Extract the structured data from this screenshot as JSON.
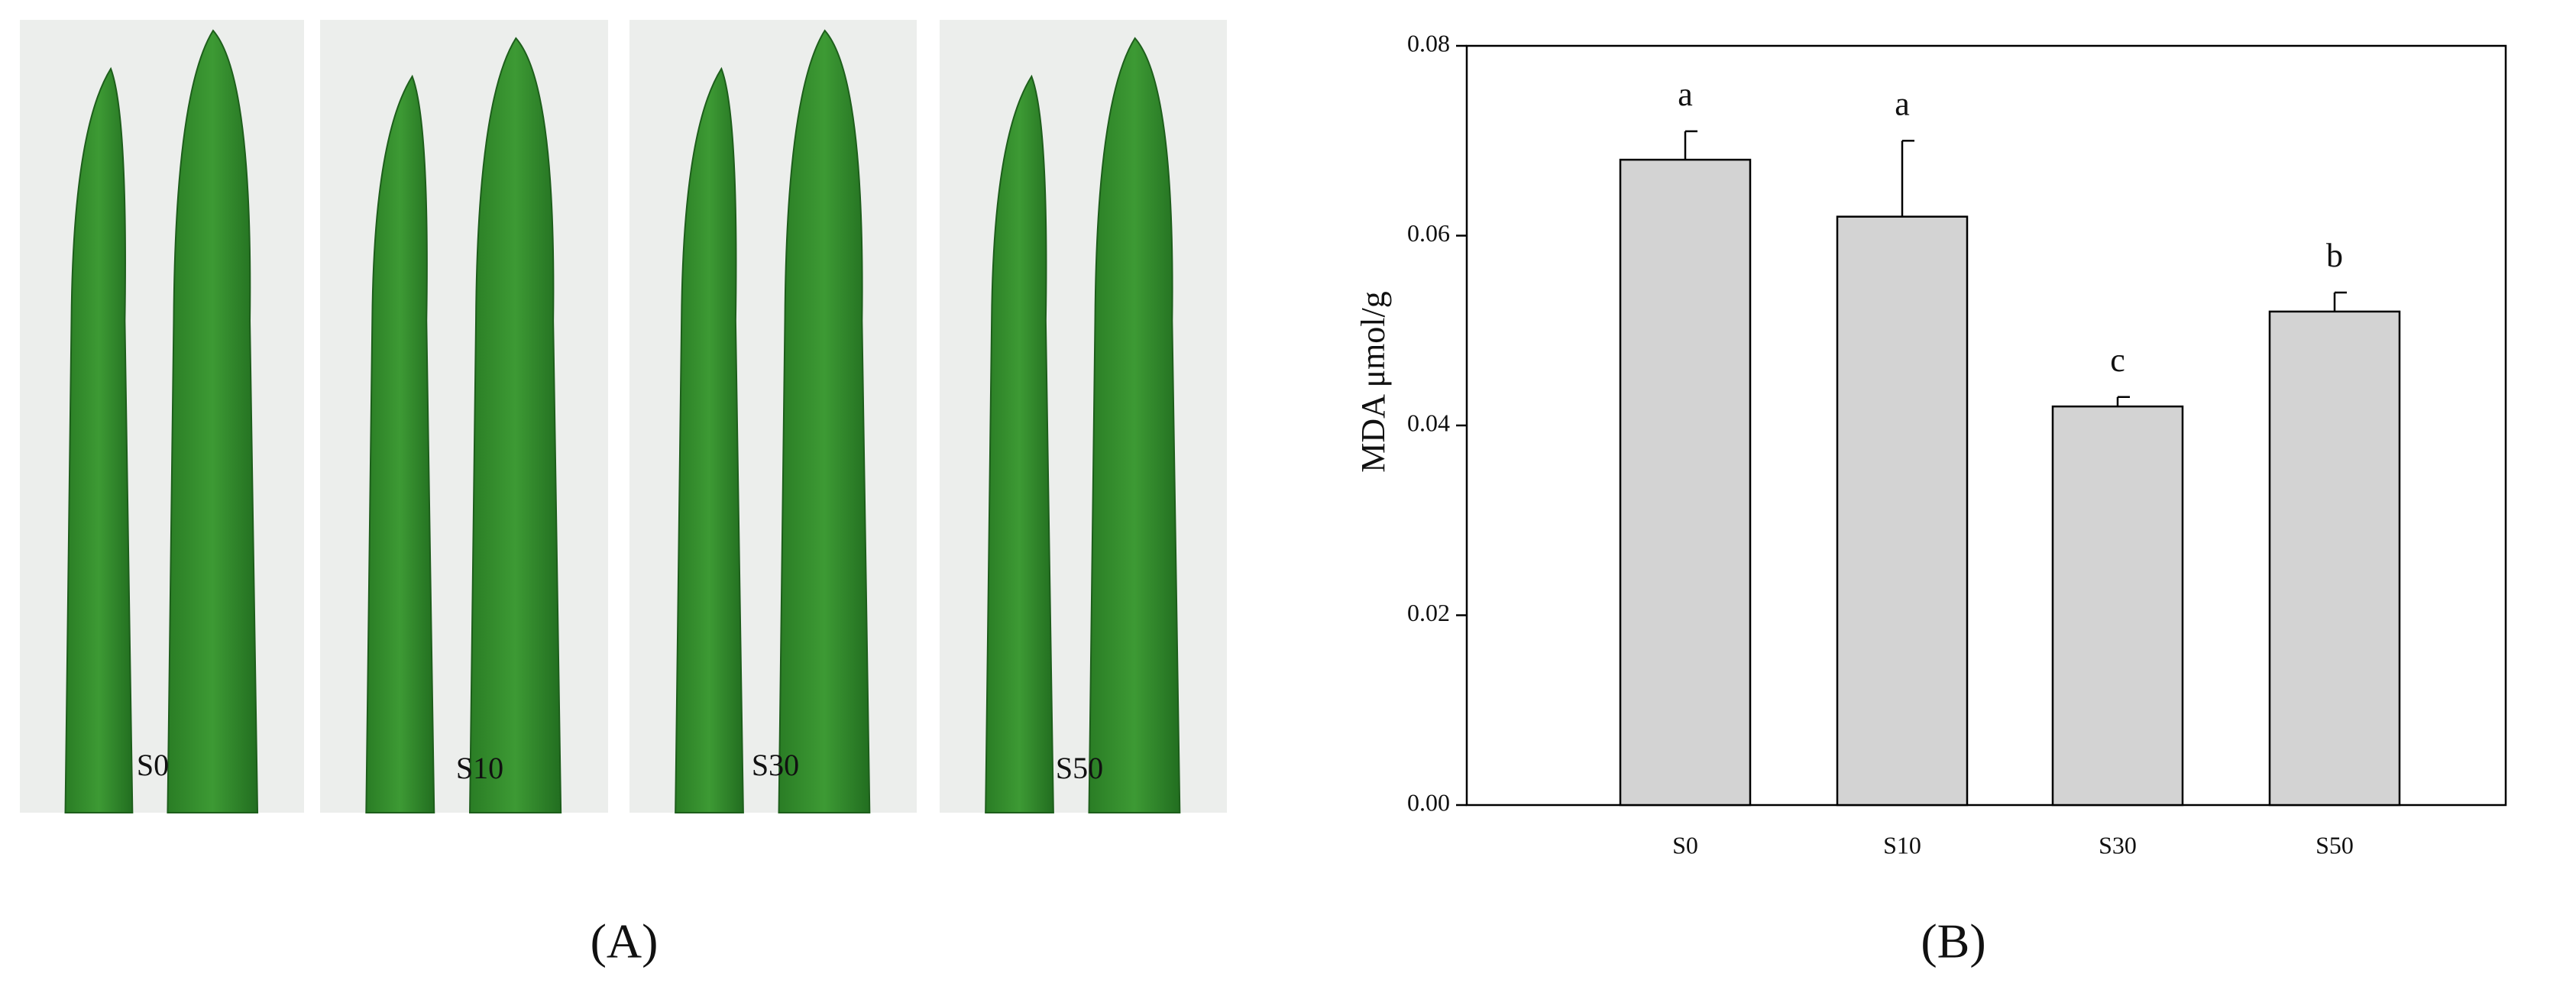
{
  "photo_labels": [
    "S0",
    "S10",
    "S30",
    "S50"
  ],
  "panel_labels": [
    "(A)",
    "(B)"
  ],
  "chart_data": {
    "type": "bar",
    "ylabel": "MDA μmol/g",
    "categories": [
      "S0",
      "S10",
      "S30",
      "S50"
    ],
    "values": [
      0.068,
      0.062,
      0.042,
      0.052
    ],
    "errors": [
      0.003,
      0.008,
      0.001,
      0.002
    ],
    "annotations": [
      "a",
      "a",
      "c",
      "b"
    ],
    "color": "#d3d3d3",
    "ylim": [
      0,
      0.08
    ],
    "yticks": [
      {
        "value": 0,
        "label": "0.00"
      },
      {
        "value": 0.02,
        "label": "0.02"
      },
      {
        "value": 0.04,
        "label": "0.04"
      },
      {
        "value": 0.06,
        "label": "0.06"
      },
      {
        "value": 0.08,
        "label": "0.08"
      }
    ]
  }
}
